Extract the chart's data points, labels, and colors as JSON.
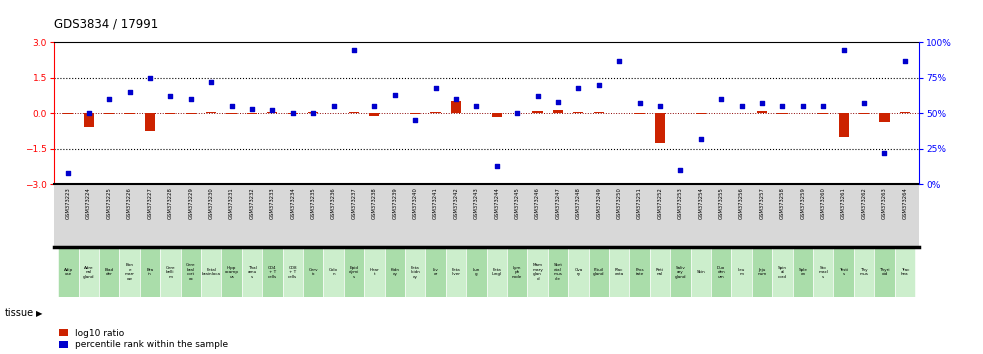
{
  "title": "GDS3834 / 17991",
  "gsm_ids": [
    "GSM373223",
    "GSM373224",
    "GSM373225",
    "GSM373226",
    "GSM373227",
    "GSM373228",
    "GSM373229",
    "GSM373230",
    "GSM373231",
    "GSM373232",
    "GSM373233",
    "GSM373234",
    "GSM373235",
    "GSM373236",
    "GSM373237",
    "GSM373238",
    "GSM373239",
    "GSM373240",
    "GSM373241",
    "GSM373242",
    "GSM373243",
    "GSM373244",
    "GSM373245",
    "GSM373246",
    "GSM373247",
    "GSM373248",
    "GSM373249",
    "GSM373250",
    "GSM373251",
    "GSM373252",
    "GSM373253",
    "GSM373254",
    "GSM373255",
    "GSM373256",
    "GSM373257",
    "GSM373258",
    "GSM373259",
    "GSM373260",
    "GSM373261",
    "GSM373262",
    "GSM373263",
    "GSM373264"
  ],
  "tissue_labels": [
    "Adip\nose",
    "Adre\nnal\ngland",
    "Blad\nder",
    "Bon\ne\nmarr\now",
    "Bra\nin",
    "Cere\nbelli\nm",
    "Cere\nbral\ncort\nex",
    "Fetal\nbrainloca",
    "Hipp\nocamp\nus",
    "Thal\namu\ns",
    "CD4\n+ T\ncells",
    "CD8\n+ T\ncells",
    "Cerv\nix",
    "Colo\nn",
    "Epid\ndymi\ns",
    "Hear\nt",
    "Kidn\ney",
    "Feta\nlkidn\ney",
    "Liv\ner",
    "Feta\nliver",
    "Lun\ng",
    "Feta\nlungl",
    "Lym\nph\nnode",
    "Mam\nmary\nglan\nd",
    "Sket\netal\nmus\ncle",
    "Ova\nry",
    "Pituil\ngland",
    "Plac\nenta",
    "Pros\ntate",
    "Reti\nnal",
    "Saliv\nary\ngland",
    "Skin",
    "Duo\nden\num",
    "Ileu\nm",
    "Jeju\nnum",
    "Spin\nal\ncord",
    "Sple\nen",
    "Sto\nmacl\ns",
    "Testi\ns",
    "Thy\nmus",
    "Thyri\noid",
    "Trac\nhea"
  ],
  "log10_ratio": [
    -0.05,
    -0.6,
    -0.05,
    -0.05,
    -0.75,
    -0.05,
    -0.05,
    0.05,
    -0.05,
    -0.05,
    0.05,
    -0.05,
    0.05,
    0.0,
    0.05,
    -0.1,
    0.0,
    -0.05,
    0.05,
    0.5,
    0.0,
    -0.15,
    0.0,
    0.1,
    0.15,
    0.05,
    0.05,
    0.0,
    -0.05,
    -1.25,
    0.0,
    -0.05,
    0.0,
    0.0,
    0.1,
    -0.05,
    0.0,
    -0.05,
    -1.0,
    -0.05,
    -0.35,
    0.05
  ],
  "percentile_rank": [
    8,
    50,
    60,
    65,
    75,
    62,
    60,
    72,
    55,
    53,
    52,
    50,
    50,
    55,
    95,
    55,
    63,
    45,
    68,
    60,
    55,
    13,
    50,
    62,
    58,
    68,
    70,
    87,
    57,
    55,
    10,
    32,
    60,
    55,
    57,
    55,
    55,
    55,
    95,
    57,
    22,
    87
  ],
  "ylim_left": [
    -3,
    3
  ],
  "ylim_right": [
    0,
    100
  ],
  "bar_color": "#cc2200",
  "scatter_color": "#0000cc",
  "bg_color_main": "#ffffff",
  "bg_color_gsm": "#d8d8d8",
  "bg_color_tissue_even": "#aaddaa",
  "bg_color_tissue_odd": "#cceecc"
}
